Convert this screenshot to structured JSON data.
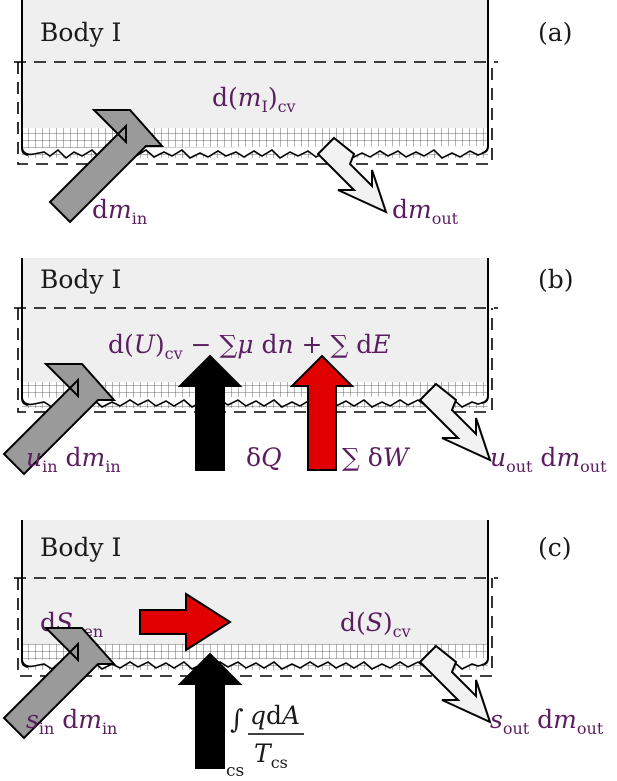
{
  "panels": [
    {
      "tag": "(a)",
      "body_label": "Body I",
      "cv": {
        "p1": "d(",
        "p2": "m",
        "p3": "I",
        "p4": ")",
        "p5": "cv"
      },
      "in": {
        "a": "d",
        "b": "m",
        "c": "in"
      },
      "out": {
        "a": "d",
        "b": "m",
        "c": "out"
      }
    },
    {
      "tag": "(b)",
      "body_label": "Body I",
      "energy": {
        "e1": "d(",
        "e2": "U",
        "e3": ")",
        "e4": "cv",
        "e5": " − ∑",
        "e6": "μ",
        "e7": " d",
        "e8": "n",
        "e9": " + ∑ d",
        "e10": "E"
      },
      "in": {
        "a": "u",
        "b": "in",
        "c": " d",
        "d": "m",
        "e": "in"
      },
      "heat": {
        "a": "δ",
        "b": "Q"
      },
      "work": {
        "a": "∑",
        "b": " δ",
        "c": "W"
      },
      "out": {
        "a": "u",
        "b": "out",
        "c": " d",
        "d": "m",
        "e": "out"
      }
    },
    {
      "tag": "(c)",
      "body_label": "Body I",
      "gen": {
        "a": "d",
        "b": "S",
        "c": "gen"
      },
      "cv": {
        "a": "d(",
        "b": "S",
        "c": ")",
        "d": "cv"
      },
      "in": {
        "a": "s",
        "b": "in",
        "c": " d",
        "d": "m",
        "e": "in"
      },
      "integral": {
        "sign": "∫",
        "lower": "cs",
        "num_a": "q",
        "num_b": "d",
        "num_c": "A",
        "den_a": "T",
        "den_b": "cs"
      },
      "out": {
        "a": "s",
        "b": "out",
        "c": " d",
        "d": "m",
        "e": "out"
      }
    }
  ],
  "colors": {
    "body_fill": "#efefef",
    "text_purple": "#5a1e5f",
    "arrow_gray": "#9a9a9a",
    "arrow_light": "#f2f2f2",
    "arrow_black": "#000000",
    "arrow_red": "#e00000"
  }
}
